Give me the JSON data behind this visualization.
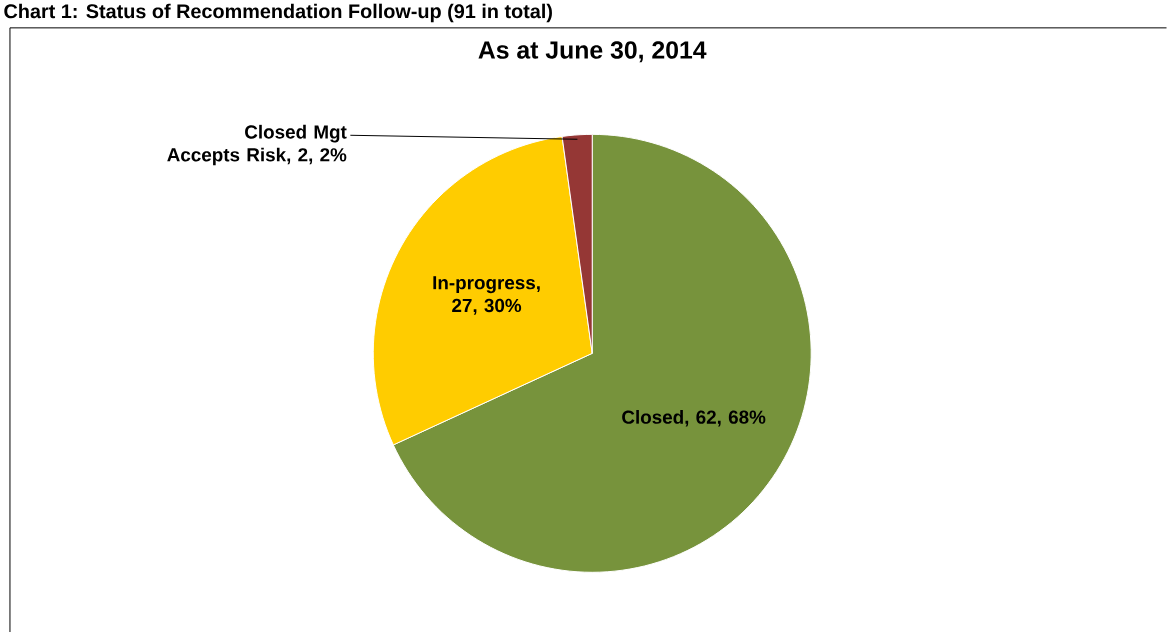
{
  "chart_data": {
    "type": "pie",
    "title": "As at June 30, 2014",
    "annotations": [
      "Chart 1: Status of Recommendation Follow-up (91 in total)"
    ],
    "categories": [
      "Closed",
      "In-progress",
      "Closed Mgt Accepts Risk"
    ],
    "values": [
      62,
      27,
      2
    ],
    "colors": [
      "#77933c",
      "#ffcc00",
      "#953735"
    ],
    "value_labels": [
      ", 62, 68%",
      ", 27, 30%",
      ", 2, 2%"
    ]
  }
}
